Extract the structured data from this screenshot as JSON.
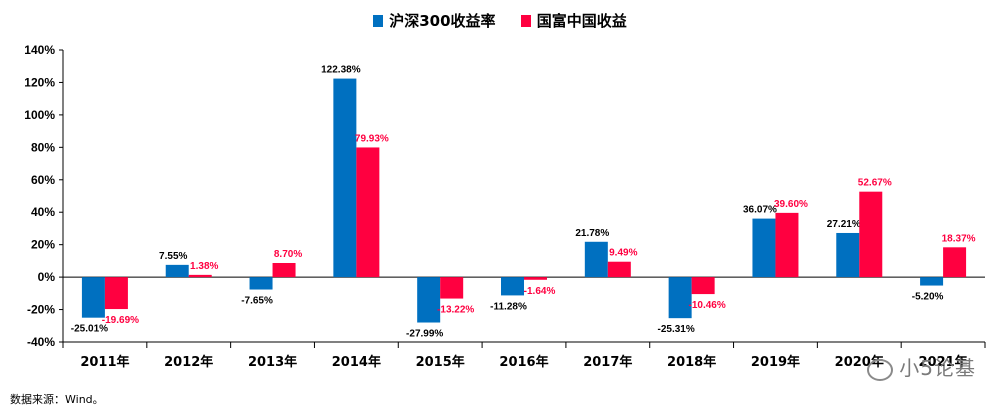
{
  "chart_data": {
    "type": "bar",
    "categories": [
      "2011年",
      "2012年",
      "2013年",
      "2014年",
      "2015年",
      "2016年",
      "2017年",
      "2018年",
      "2019年",
      "2020年",
      "2021年"
    ],
    "series": [
      {
        "name": "沪深300收益率",
        "color": "#0070C0",
        "values": [
          -25.01,
          7.55,
          -7.65,
          122.38,
          -27.99,
          -11.28,
          21.78,
          -25.31,
          36.07,
          27.21,
          -5.2
        ],
        "labels": [
          "-25.01%",
          "7.55%",
          "-7.65%",
          "122.38%",
          "-27.99%",
          "-11.28%",
          "21.78%",
          "-25.31%",
          "36.07%",
          "27.21%",
          "-5.20%"
        ]
      },
      {
        "name": "国富中国收益",
        "color": "#FF0040",
        "values": [
          -19.69,
          1.38,
          8.7,
          79.93,
          -13.22,
          -1.64,
          9.49,
          -10.46,
          39.6,
          52.67,
          18.37
        ],
        "labels": [
          "-19.69%",
          "1.38%",
          "8.70%",
          "79.93%",
          "-13.22%",
          "-1.64%",
          "9.49%",
          "-10.46%",
          "39.60%",
          "52.67%",
          "18.37%"
        ]
      }
    ],
    "ylim": [
      -40,
      140
    ],
    "yticks": [
      "-40%",
      "-20%",
      "0%",
      "20%",
      "40%",
      "60%",
      "80%",
      "100%",
      "120%",
      "140%"
    ],
    "ytick_values": [
      -40,
      -20,
      0,
      20,
      40,
      60,
      80,
      100,
      120,
      140
    ],
    "grid": false,
    "legend": "top-center"
  },
  "source_note": "数据来源：Wind。",
  "watermark": "小5论基"
}
